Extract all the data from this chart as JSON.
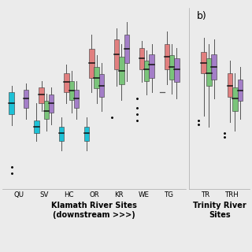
{
  "background_color": "#ebebeb",
  "panel_bg": "#ebebeb",
  "colors": [
    "#00BCD4",
    "#E07070",
    "#6BBF6B",
    "#9B6FC4"
  ],
  "klamath_sites": [
    "QU",
    "SV",
    "HC",
    "OR",
    "KR",
    "WE",
    "TG"
  ],
  "trinity_sites": [
    "TR",
    "TRH"
  ],
  "xlabel_klamath": "Klamath River Sites\n(downstream >>>)",
  "xlabel_trinity": "Trinity River\nSites",
  "panel_b_label": "b)",
  "boxes": {
    "QU": [
      {
        "q1": 38,
        "median": 55,
        "q3": 72,
        "whisker_low": 20,
        "whisker_high": 82,
        "outliers": [
          -55,
          -45
        ]
      },
      {
        "q1": null,
        "median": null,
        "q3": null,
        "whisker_low": null,
        "whisker_high": null,
        "outliers": []
      },
      {
        "q1": null,
        "median": null,
        "q3": null,
        "whisker_low": null,
        "whisker_high": null,
        "outliers": []
      },
      {
        "q1": 48,
        "median": 62,
        "q3": 76,
        "whisker_low": 30,
        "whisker_high": 86,
        "outliers": []
      }
    ],
    "SV": [
      {
        "q1": 8,
        "median": 18,
        "q3": 28,
        "whisker_low": -5,
        "whisker_high": 55,
        "outliers": []
      },
      {
        "q1": 55,
        "median": 68,
        "q3": 80,
        "whisker_low": 42,
        "whisker_high": 90,
        "outliers": []
      },
      {
        "q1": 30,
        "median": 42,
        "q3": 58,
        "whisker_low": 12,
        "whisker_high": 70,
        "outliers": []
      },
      {
        "q1": 40,
        "median": 55,
        "q3": 68,
        "whisker_low": 22,
        "whisker_high": 80,
        "outliers": []
      }
    ],
    "HC": [
      {
        "q1": -5,
        "median": 8,
        "q3": 18,
        "whisker_low": -20,
        "whisker_high": 32,
        "outliers": []
      },
      {
        "q1": 72,
        "median": 88,
        "q3": 102,
        "whisker_low": 55,
        "whisker_high": 115,
        "outliers": []
      },
      {
        "q1": 60,
        "median": 75,
        "q3": 90,
        "whisker_low": 40,
        "whisker_high": 105,
        "outliers": []
      },
      {
        "q1": 48,
        "median": 62,
        "q3": 76,
        "whisker_low": 30,
        "whisker_high": 90,
        "outliers": []
      }
    ],
    "OR": [
      {
        "q1": -5,
        "median": 8,
        "q3": 18,
        "whisker_low": -20,
        "whisker_high": 32,
        "outliers": []
      },
      {
        "q1": 95,
        "median": 118,
        "q3": 140,
        "whisker_low": 72,
        "whisker_high": 162,
        "outliers": []
      },
      {
        "q1": 78,
        "median": 95,
        "q3": 112,
        "whisker_low": 55,
        "whisker_high": 130,
        "outliers": []
      },
      {
        "q1": 65,
        "median": 82,
        "q3": 100,
        "whisker_low": 42,
        "whisker_high": 118,
        "outliers": []
      }
    ],
    "KR": [
      {
        "q1": null,
        "median": null,
        "q3": null,
        "whisker_low": null,
        "whisker_high": null,
        "outliers": [
          32
        ]
      },
      {
        "q1": 108,
        "median": 132,
        "q3": 155,
        "whisker_low": 82,
        "whisker_high": 172,
        "outliers": []
      },
      {
        "q1": 85,
        "median": 105,
        "q3": 128,
        "whisker_low": 60,
        "whisker_high": 148,
        "outliers": []
      },
      {
        "q1": 118,
        "median": 140,
        "q3": 162,
        "whisker_low": 90,
        "whisker_high": 182,
        "outliers": []
      }
    ],
    "WE": [
      {
        "q1": null,
        "median": null,
        "q3": null,
        "whisker_low": null,
        "whisker_high": null,
        "outliers": [
          28,
          38,
          48,
          62
        ]
      },
      {
        "q1": 108,
        "median": 125,
        "q3": 142,
        "whisker_low": 88,
        "whisker_high": 152,
        "outliers": []
      },
      {
        "q1": 90,
        "median": 108,
        "q3": 122,
        "whisker_low": 68,
        "whisker_high": 138,
        "outliers": []
      },
      {
        "q1": 95,
        "median": 115,
        "q3": 132,
        "whisker_low": 72,
        "whisker_high": 148,
        "outliers": []
      }
    ],
    "TG": [
      {
        "q1": null,
        "median": null,
        "q3": null,
        "whisker_low": 72,
        "whisker_high": 72,
        "outliers": []
      },
      {
        "q1": 108,
        "median": 128,
        "q3": 148,
        "whisker_low": 85,
        "whisker_high": 168,
        "outliers": []
      },
      {
        "q1": 92,
        "median": 112,
        "q3": 130,
        "whisker_low": 70,
        "whisker_high": 148,
        "outliers": []
      },
      {
        "q1": 88,
        "median": 108,
        "q3": 125,
        "whisker_low": 62,
        "whisker_high": 142,
        "outliers": []
      }
    ],
    "TR": [
      {
        "q1": null,
        "median": null,
        "q3": null,
        "whisker_low": null,
        "whisker_high": null,
        "outliers": [
          22,
          28
        ]
      },
      {
        "q1": 102,
        "median": 118,
        "q3": 135,
        "whisker_low": 35,
        "whisker_high": 158,
        "outliers": []
      },
      {
        "q1": 82,
        "median": 102,
        "q3": 125,
        "whisker_low": 18,
        "whisker_high": 148,
        "outliers": []
      },
      {
        "q1": 92,
        "median": 112,
        "q3": 132,
        "whisker_low": 62,
        "whisker_high": 155,
        "outliers": []
      }
    ],
    "TRH": [
      {
        "q1": null,
        "median": null,
        "q3": null,
        "whisker_low": null,
        "whisker_high": null,
        "outliers": [
          2,
          8
        ]
      },
      {
        "q1": 65,
        "median": 82,
        "q3": 102,
        "whisker_low": 25,
        "whisker_high": 122,
        "outliers": []
      },
      {
        "q1": 42,
        "median": 62,
        "q3": 80,
        "whisker_low": 12,
        "whisker_high": 102,
        "outliers": []
      },
      {
        "q1": 58,
        "median": 75,
        "q3": 92,
        "whisker_low": 30,
        "whisker_high": 112,
        "outliers": []
      }
    ]
  },
  "ylim": [
    -80,
    205
  ],
  "box_width": 0.2,
  "offsets": [
    -0.295,
    -0.098,
    0.098,
    0.295
  ]
}
